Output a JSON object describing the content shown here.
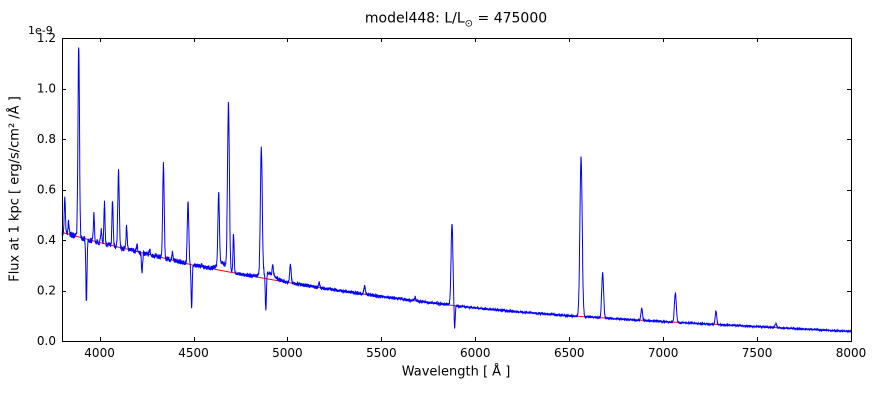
{
  "title": {
    "prefix": "model448: L/L",
    "subscript": "⊙",
    "suffix": " = 475000"
  },
  "chart_data": {
    "type": "line",
    "title": "model448: L/L⊙ = 475000",
    "xlabel": "Wavelength [ Å ]",
    "ylabel": "Flux at 1 kpc [ erg/s/cm² /Å ]",
    "y_offset_label": "1e-9",
    "xlim": [
      3800,
      8000
    ],
    "ylim": [
      0,
      1.2
    ],
    "xticks": [
      4000,
      4500,
      5000,
      5500,
      6000,
      6500,
      7000,
      7500,
      8000
    ],
    "yticks": [
      0.0,
      0.2,
      0.4,
      0.6,
      0.8,
      1.0,
      1.2
    ],
    "grid": false,
    "axis_color": "#000000",
    "series": [
      {
        "name": "continuum_fit",
        "color": "#ff0000",
        "role": "continuum",
        "anchors": [
          [
            3800,
            0.43
          ],
          [
            4000,
            0.39
          ],
          [
            4250,
            0.345
          ],
          [
            4500,
            0.3
          ],
          [
            4750,
            0.265
          ],
          [
            5000,
            0.232
          ],
          [
            5250,
            0.202
          ],
          [
            5500,
            0.176
          ],
          [
            5750,
            0.152
          ],
          [
            6000,
            0.131
          ],
          [
            6250,
            0.114
          ],
          [
            6500,
            0.1
          ],
          [
            6750,
            0.088
          ],
          [
            7000,
            0.077
          ],
          [
            7250,
            0.067
          ],
          [
            7500,
            0.057
          ],
          [
            7750,
            0.047
          ],
          [
            8000,
            0.038
          ]
        ]
      },
      {
        "name": "spectrum",
        "color": "#0000ff",
        "role": "spectrum",
        "noise_fraction": 0.025,
        "emission_lines": [
          {
            "wl": 3815,
            "peak": 0.57,
            "sigma": 3
          },
          {
            "wl": 3835,
            "peak": 0.47,
            "sigma": 3
          },
          {
            "wl": 3889,
            "peak": 1.17,
            "sigma": 4
          },
          {
            "wl": 3970,
            "peak": 0.5,
            "sigma": 3
          },
          {
            "wl": 4009,
            "peak": 0.44,
            "sigma": 3
          },
          {
            "wl": 4026,
            "peak": 0.55,
            "sigma": 3
          },
          {
            "wl": 4069,
            "peak": 0.56,
            "sigma": 3
          },
          {
            "wl": 4101,
            "peak": 0.67,
            "sigma": 4
          },
          {
            "wl": 4144,
            "peak": 0.45,
            "sigma": 3
          },
          {
            "wl": 4200,
            "peak": 0.38,
            "sigma": 3
          },
          {
            "wl": 4267,
            "peak": 0.36,
            "sigma": 3
          },
          {
            "wl": 4340,
            "peak": 0.7,
            "sigma": 4
          },
          {
            "wl": 4388,
            "peak": 0.35,
            "sigma": 3
          },
          {
            "wl": 4471,
            "peak": 0.55,
            "sigma": 4
          },
          {
            "wl": 4542,
            "peak": 0.3,
            "sigma": 3
          },
          {
            "wl": 4634,
            "peak": 0.56,
            "sigma": 4
          },
          {
            "wl": 4650,
            "peak": 0.31,
            "sigma": 25
          },
          {
            "wl": 4686,
            "peak": 0.93,
            "sigma": 5
          },
          {
            "wl": 4713,
            "peak": 0.42,
            "sigma": 3
          },
          {
            "wl": 4861,
            "peak": 0.75,
            "sigma": 5
          },
          {
            "wl": 4900,
            "peak": 0.27,
            "sigma": 35
          },
          {
            "wl": 4922,
            "peak": 0.28,
            "sigma": 3
          },
          {
            "wl": 5016,
            "peak": 0.3,
            "sigma": 4
          },
          {
            "wl": 5169,
            "peak": 0.23,
            "sigma": 3
          },
          {
            "wl": 5411,
            "peak": 0.22,
            "sigma": 4
          },
          {
            "wl": 5680,
            "peak": 0.17,
            "sigma": 4
          },
          {
            "wl": 5876,
            "peak": 0.46,
            "sigma": 5
          },
          {
            "wl": 6563,
            "peak": 0.73,
            "sigma": 6
          },
          {
            "wl": 6678,
            "peak": 0.27,
            "sigma": 5
          },
          {
            "wl": 6886,
            "peak": 0.13,
            "sigma": 4
          },
          {
            "wl": 7065,
            "peak": 0.19,
            "sigma": 5
          },
          {
            "wl": 7281,
            "peak": 0.12,
            "sigma": 4
          },
          {
            "wl": 7600,
            "peak": 0.07,
            "sigma": 4
          }
        ],
        "absorption_lines": [
          {
            "wl": 3930,
            "min": 0.15,
            "sigma": 3
          },
          {
            "wl": 4226,
            "min": 0.27,
            "sigma": 3
          },
          {
            "wl": 4490,
            "min": 0.135,
            "sigma": 3
          },
          {
            "wl": 4885,
            "min": 0.1,
            "sigma": 3
          },
          {
            "wl": 5890,
            "min": 0.05,
            "sigma": 3
          }
        ]
      }
    ]
  }
}
